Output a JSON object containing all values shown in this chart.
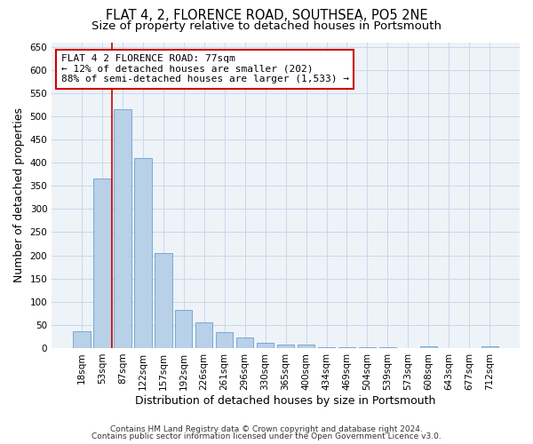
{
  "title": "FLAT 4, 2, FLORENCE ROAD, SOUTHSEA, PO5 2NE",
  "subtitle": "Size of property relative to detached houses in Portsmouth",
  "xlabel": "Distribution of detached houses by size in Portsmouth",
  "ylabel": "Number of detached properties",
  "bar_labels": [
    "18sqm",
    "53sqm",
    "87sqm",
    "122sqm",
    "157sqm",
    "192sqm",
    "226sqm",
    "261sqm",
    "296sqm",
    "330sqm",
    "365sqm",
    "400sqm",
    "434sqm",
    "469sqm",
    "504sqm",
    "539sqm",
    "573sqm",
    "608sqm",
    "643sqm",
    "677sqm",
    "712sqm"
  ],
  "bar_values": [
    37,
    365,
    515,
    410,
    205,
    82,
    55,
    35,
    22,
    12,
    8,
    8,
    2,
    2,
    2,
    1,
    0,
    4,
    0,
    0,
    4
  ],
  "bar_color": "#b8d0e8",
  "bar_edge_color": "#6aa0cc",
  "vline_x": 2.0,
  "vline_color": "#cc0000",
  "annotation_line1": "FLAT 4 2 FLORENCE ROAD: 77sqm",
  "annotation_line2": "← 12% of detached houses are smaller (202)",
  "annotation_line3": "88% of semi-detached houses are larger (1,533) →",
  "ylim": [
    0,
    660
  ],
  "yticks": [
    0,
    50,
    100,
    150,
    200,
    250,
    300,
    350,
    400,
    450,
    500,
    550,
    600,
    650
  ],
  "grid_color": "#c8d8ea",
  "footer1": "Contains HM Land Registry data © Crown copyright and database right 2024.",
  "footer2": "Contains public sector information licensed under the Open Government Licence v3.0.",
  "bg_color": "#eef3f8",
  "title_fontsize": 10.5,
  "subtitle_fontsize": 9.5,
  "annotation_fontsize": 8,
  "axis_label_fontsize": 9,
  "tick_fontsize": 7.5,
  "footer_fontsize": 6.5
}
